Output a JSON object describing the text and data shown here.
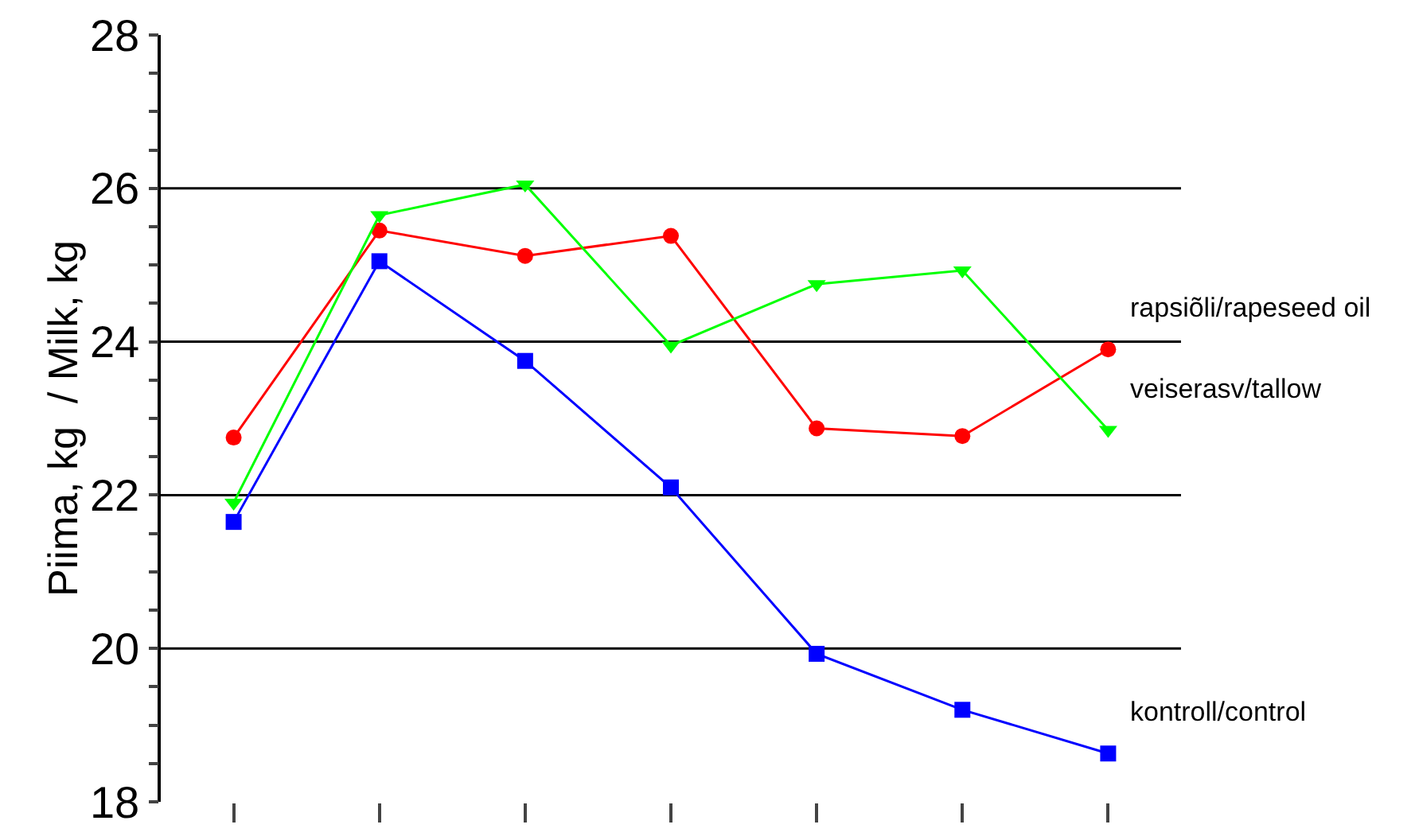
{
  "chart_data": {
    "type": "line",
    "ylabel": "Piima, kg  / Milk, kg",
    "categories": [
      null,
      null,
      null,
      null,
      null,
      null,
      null
    ],
    "series": [
      {
        "name": "rapsiõli/rapeseed oil",
        "color": "#ff0000",
        "marker": "circle",
        "values": [
          22.75,
          25.45,
          25.12,
          25.38,
          22.87,
          22.77,
          23.9
        ]
      },
      {
        "name": "veiserasv/tallow",
        "color": "#00ff00",
        "marker": "triangle",
        "values": [
          21.9,
          25.65,
          26.05,
          23.95,
          24.75,
          24.93,
          22.85
        ]
      },
      {
        "name": "kontroll/control",
        "color": "#0000ff",
        "marker": "square",
        "values": [
          21.65,
          25.05,
          23.75,
          22.1,
          19.93,
          19.2,
          18.63
        ]
      }
    ],
    "ylim": [
      18,
      28
    ],
    "yticks": [
      18,
      {
        "value": 18.5,
        "label": null
      },
      {
        "value": 19,
        "label": null
      },
      {
        "value": 19.5,
        "label": null
      },
      20,
      {
        "value": 20.5,
        "label": null
      },
      {
        "value": 21,
        "label": null
      },
      {
        "value": 21.5,
        "label": null
      },
      22,
      {
        "value": 22.5,
        "label": null
      },
      {
        "value": 23,
        "label": null
      },
      {
        "value": 23.5,
        "label": null
      },
      24,
      {
        "value": 24.5,
        "label": null
      },
      {
        "value": 25,
        "label": null
      },
      {
        "value": 25.5,
        "label": null
      },
      26,
      {
        "value": 26.5,
        "label": null
      },
      {
        "value": 27,
        "label": null
      },
      {
        "value": 27.5,
        "label": null
      },
      28
    ],
    "grid": "y",
    "legend": false,
    "tick_labels": "y"
  }
}
